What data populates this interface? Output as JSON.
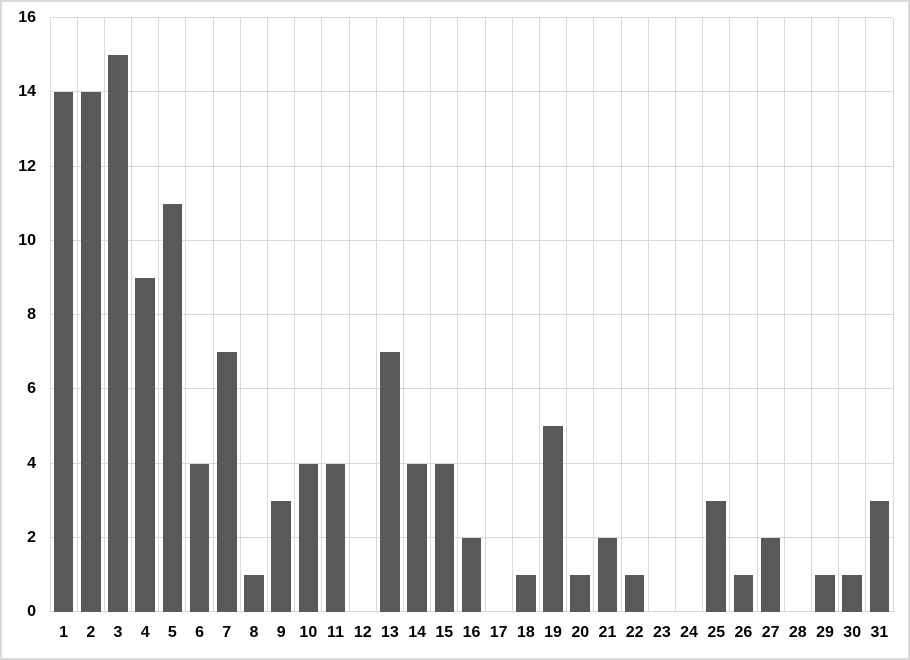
{
  "chart_data": {
    "type": "bar",
    "categories": [
      "1",
      "2",
      "3",
      "4",
      "5",
      "6",
      "7",
      "8",
      "9",
      "10",
      "11",
      "12",
      "13",
      "14",
      "15",
      "16",
      "17",
      "18",
      "19",
      "20",
      "21",
      "22",
      "23",
      "24",
      "25",
      "26",
      "27",
      "28",
      "29",
      "30",
      "31"
    ],
    "values": [
      14,
      14,
      15,
      9,
      11,
      4,
      7,
      1,
      3,
      4,
      4,
      0,
      7,
      4,
      4,
      2,
      0,
      1,
      5,
      1,
      2,
      1,
      0,
      0,
      3,
      1,
      2,
      0,
      1,
      1,
      3
    ],
    "title": "",
    "xlabel": "",
    "ylabel": "",
    "ylim": [
      0,
      16
    ],
    "ytick_step": 2,
    "ytick_labels": [
      "0",
      "2",
      "4",
      "6",
      "8",
      "10",
      "12",
      "14",
      "16"
    ],
    "grid": true,
    "legend_position": "none",
    "bar_color": "#595959",
    "gridline_color": "#d9d9d9",
    "axis_label_color": "#000000",
    "background_color": "#ffffff",
    "bar_width_fraction": 0.72
  }
}
